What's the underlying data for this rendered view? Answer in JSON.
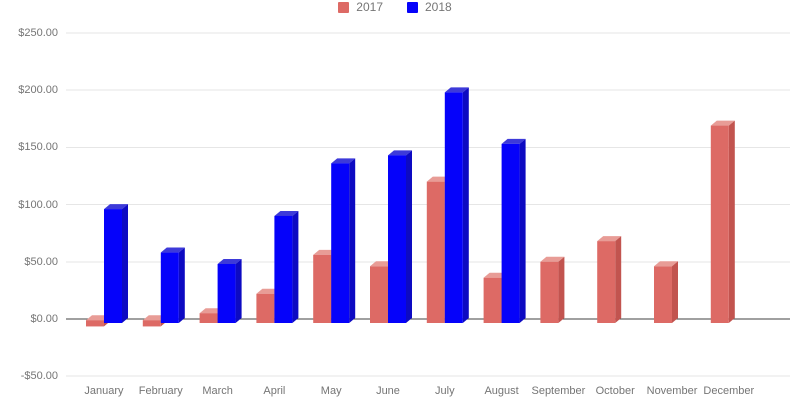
{
  "legend": {
    "items": [
      {
        "label": "2017",
        "color": "#dd6a65"
      },
      {
        "label": "2018",
        "color": "#0502fa"
      }
    ]
  },
  "chart_data": {
    "type": "bar",
    "style": "3d-grouped-columns",
    "title": "",
    "xlabel": "",
    "ylabel": "",
    "categories": [
      "January",
      "February",
      "March",
      "April",
      "May",
      "June",
      "July",
      "August",
      "September",
      "October",
      "November",
      "December"
    ],
    "series": [
      {
        "name": "2017",
        "color": "#dd6a65",
        "top_color": "#e89c96",
        "side_color": "#c2544f",
        "values": [
          -3,
          -3,
          7,
          24,
          58,
          48,
          122,
          38,
          52,
          70,
          48,
          171
        ]
      },
      {
        "name": "2018",
        "color": "#0502fa",
        "top_color": "#3d3ad9",
        "side_color": "#0d0ac2",
        "values": [
          98,
          60,
          50,
          92,
          138,
          145,
          200,
          155,
          null,
          null,
          null,
          null
        ]
      }
    ],
    "y_ticks": [
      {
        "label": "$250.00",
        "value": 250
      },
      {
        "label": "$200.00",
        "value": 200
      },
      {
        "label": "$150.00",
        "value": 150
      },
      {
        "label": "$100.00",
        "value": 100
      },
      {
        "label": "$50.00",
        "value": 50
      },
      {
        "label": "$0.00",
        "value": 0
      },
      {
        "label": "-$50.00",
        "value": -50
      }
    ],
    "ylim": [
      -50,
      250
    ],
    "grid": true,
    "legend_position": "top-center",
    "background_color": "#ffffff",
    "grid_color": "#e6e6e6",
    "axis_line_color": "#424242",
    "label_color": "#757575"
  }
}
